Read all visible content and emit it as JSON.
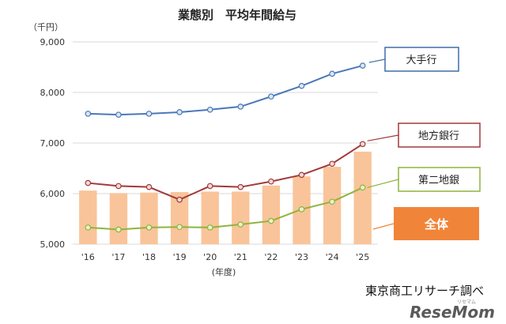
{
  "chart_data": {
    "type": "bar+line",
    "title": "業態別　平均年間給与",
    "unit_label": "（千円）",
    "xlabel": "(年度)",
    "categories": [
      "'16",
      "'17",
      "'18",
      "'19",
      "'20",
      "'21",
      "'22",
      "'23",
      "'24",
      "'25"
    ],
    "ylim": [
      5000,
      9000
    ],
    "yticks": [
      "5,000",
      "6,000",
      "7,000",
      "8,000",
      "9,000"
    ],
    "ytick_values": [
      5000,
      6000,
      7000,
      8000,
      9000
    ],
    "grid": true,
    "bars": {
      "name": "全体",
      "color": "#f9c49a",
      "values": [
        6060,
        6010,
        6020,
        6030,
        6040,
        6040,
        6160,
        6340,
        6530,
        6830
      ]
    },
    "series": [
      {
        "name": "大手行",
        "color": "#4a78b8",
        "marker_fill": "#dce6f4",
        "values": [
          7580,
          7560,
          7580,
          7610,
          7660,
          7720,
          7920,
          8130,
          8370,
          8530
        ]
      },
      {
        "name": "地方銀行",
        "color": "#a23a3a",
        "marker_fill": "#f3d9d9",
        "values": [
          6210,
          6150,
          6130,
          5880,
          6150,
          6130,
          6240,
          6370,
          6590,
          6980
        ]
      },
      {
        "name": "第二地銀",
        "color": "#8fb43e",
        "marker_fill": "#e8f2cf",
        "values": [
          5330,
          5290,
          5330,
          5340,
          5330,
          5390,
          5460,
          5690,
          5840,
          6120
        ]
      }
    ]
  },
  "callouts": {
    "major": "大手行",
    "regional": "地方銀行",
    "second": "第二地銀",
    "overall": "全体"
  },
  "colors": {
    "grid": "#d9d9d9",
    "overall_box": "#f0853a",
    "major_border": "#3f6ea8",
    "regional_border": "#a23a3a",
    "second_border": "#8fb43e"
  },
  "footer": {
    "source": "東京商工リサーチ調べ",
    "brand": "ReseMom",
    "brand_small": "リセマム"
  }
}
